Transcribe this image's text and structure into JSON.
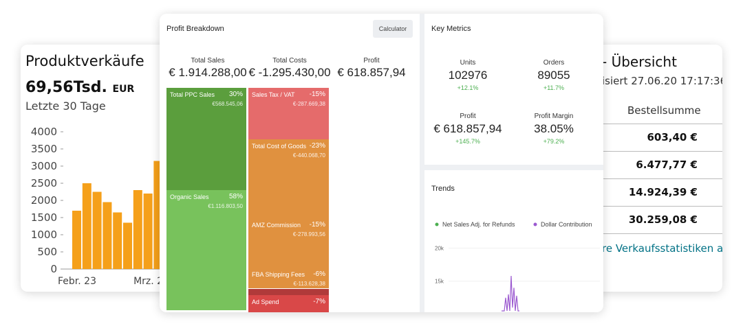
{
  "sales_card": {
    "title": "Produktverkäufe",
    "amount": "69,56Tsd.",
    "currency": "EUR",
    "period": "Letzte 30 Tage",
    "chart_data": {
      "type": "bar",
      "categories": [
        "Febr. 23",
        null,
        null,
        null,
        null,
        null,
        null,
        "Mrz. 2",
        null
      ],
      "values": [
        1700,
        2500,
        2250,
        1950,
        1650,
        1350,
        2300,
        2200,
        3150
      ],
      "color": "#f5a01a",
      "ylim": [
        0,
        4000
      ],
      "yticks": [
        0,
        500,
        1000,
        1500,
        2000,
        2500,
        3000,
        3500,
        4000
      ],
      "grid": false
    }
  },
  "overview_card": {
    "title": "- Übersicht",
    "updated": "isiert 27.06.20 17:17:36",
    "column_header": "Bestellsumme",
    "rows": [
      "603,40 €",
      "6.477,77 €",
      "14.924,39 €",
      "30.259,08 €"
    ],
    "link": "re Verkaufsstatistiken an"
  },
  "profit_breakdown": {
    "title": "Profit Breakdown",
    "button": "Calculator",
    "summary": [
      {
        "label": "Total Sales",
        "value": "€ 1.914.288,00"
      },
      {
        "label": "Total Costs",
        "value": "€ -1.295.430,00"
      },
      {
        "label": "Profit",
        "value": "€ 618.857,94"
      }
    ],
    "tiles": [
      {
        "label": "Total PPC Sales",
        "percent": "30%",
        "amount": "€568.545,06",
        "color": "#5b9e3d"
      },
      {
        "label": "Organic Sales",
        "percent": "58%",
        "amount": "€1.116.803,50",
        "color": "#78c25c"
      },
      {
        "label": "Sales Tax / VAT",
        "percent": "-15%",
        "amount": "€-287.669,38",
        "color": "#e56b6b"
      },
      {
        "label": "Total Cost of Goods",
        "percent": "-23%",
        "amount": "€-440.068,70",
        "color": "#e0913f"
      },
      {
        "label": "AMZ Commission",
        "percent": "-15%",
        "amount": "€-278.993,56",
        "color": "#e0913f"
      },
      {
        "label": "FBA Shipping Fees",
        "percent": "-6%",
        "amount": "€-113.628,38",
        "color": "#e0913f"
      },
      {
        "label": "Ad Spend",
        "percent": "-7%",
        "amount": "",
        "color": "#d94848"
      }
    ]
  },
  "key_metrics": {
    "title": "Key Metrics",
    "metrics": [
      {
        "label": "Units",
        "value": "102976",
        "change": "+12.1%"
      },
      {
        "label": "Orders",
        "value": "89055",
        "change": "+11.7%"
      },
      {
        "label": "Profit",
        "value": "€ 618.857,94",
        "change": "+145.7%"
      },
      {
        "label": "Profit Margin",
        "value": "38.05%",
        "change": "+79.2%"
      }
    ]
  },
  "trends": {
    "title": "Trends",
    "chart_data": {
      "type": "line",
      "series": [
        {
          "name": "Net Sales Adj. for Refunds",
          "color": "#4caf50",
          "values": []
        },
        {
          "name": "Dollar Contribution",
          "color": "#9b59d0",
          "values": [
            10500,
            10500,
            10500,
            12500,
            10500,
            13000,
            10500,
            15800,
            11000,
            14000,
            10500,
            12800,
            10500,
            10500
          ]
        }
      ],
      "ylim": [
        10500,
        21000
      ],
      "yticks": [
        {
          "value": 20000,
          "label": "20k"
        },
        {
          "value": 15000,
          "label": "15k"
        }
      ]
    }
  }
}
